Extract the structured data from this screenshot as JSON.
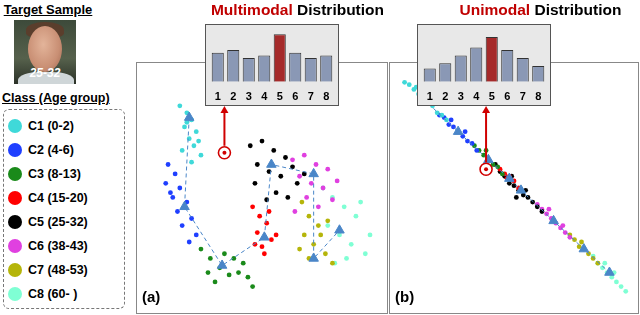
{
  "panel": {
    "title": "Target Sample",
    "sample_label": "25-32",
    "legend_title": "Class (Age group)"
  },
  "chart_data": [
    {
      "type": "scatter",
      "title": "Multimodal Distribution",
      "annotations": [
        "(a)"
      ],
      "xlim": [
        0,
        100
      ],
      "ylim": [
        0,
        100
      ],
      "grid": false,
      "tick_labels": false,
      "series": [
        {
          "name": "C1 (0-2)",
          "color": "#3fd9d9",
          "marker": "circle",
          "center": [
            19,
            80
          ],
          "values": [
            [
              15,
              85
            ],
            [
              18,
              82
            ],
            [
              20,
              79
            ],
            [
              17,
              76
            ],
            [
              22,
              74
            ],
            [
              19,
              71
            ],
            [
              21,
              68
            ],
            [
              16,
              66
            ],
            [
              24,
              64
            ],
            [
              20,
              61
            ],
            [
              18,
              78
            ],
            [
              23,
              70
            ]
          ]
        },
        {
          "name": "C2 (4-6)",
          "color": "#1f3fff",
          "marker": "circle",
          "center": [
            17,
            42
          ],
          "values": [
            [
              10,
              60
            ],
            [
              13,
              56
            ],
            [
              9,
              52
            ],
            [
              15,
              50
            ],
            [
              12,
              46
            ],
            [
              18,
              44
            ],
            [
              14,
              40
            ],
            [
              20,
              37
            ],
            [
              16,
              34
            ],
            [
              22,
              30
            ],
            [
              19,
              27
            ],
            [
              11,
              48
            ]
          ]
        },
        {
          "name": "C3 (8-13)",
          "color": "#1a8a1a",
          "marker": "circle",
          "center": [
            33,
            17
          ],
          "values": [
            [
              24,
              24
            ],
            [
              28,
              20
            ],
            [
              32,
              16
            ],
            [
              36,
              13
            ],
            [
              30,
              10
            ],
            [
              40,
              14
            ],
            [
              44,
              12
            ],
            [
              38,
              20
            ],
            [
              34,
              22
            ],
            [
              46,
              8
            ],
            [
              27,
              14
            ],
            [
              42,
              18
            ]
          ]
        },
        {
          "name": "C4 (15-20)",
          "color": "#ff0000",
          "marker": "circle",
          "center": [
            51,
            29
          ],
          "values": [
            [
              46,
              42
            ],
            [
              49,
              38
            ],
            [
              52,
              35
            ],
            [
              48,
              31
            ],
            [
              54,
              28
            ],
            [
              50,
              25
            ],
            [
              56,
              30
            ],
            [
              47,
              26
            ],
            [
              53,
              40
            ],
            [
              51,
              22
            ]
          ]
        },
        {
          "name": "C5 (25-32)",
          "color": "#000000",
          "marker": "circle",
          "center": [
            54,
            60
          ],
          "values": [
            [
              45,
              68
            ],
            [
              50,
              70
            ],
            [
              55,
              66
            ],
            [
              60,
              63
            ],
            [
              48,
              60
            ],
            [
              53,
              57
            ],
            [
              58,
              55
            ],
            [
              63,
              59
            ],
            [
              47,
              52
            ],
            [
              56,
              48
            ],
            [
              65,
              52
            ],
            [
              52,
              45
            ],
            [
              61,
              46
            ],
            [
              68,
              56
            ]
          ]
        },
        {
          "name": "C6 (38-43)",
          "color": "#e040e0",
          "marker": "circle",
          "center": [
            72,
            56
          ],
          "values": [
            [
              63,
              62
            ],
            [
              68,
              64
            ],
            [
              73,
              60
            ],
            [
              78,
              58
            ],
            [
              66,
              55
            ],
            [
              71,
              52
            ],
            [
              76,
              50
            ],
            [
              82,
              53
            ],
            [
              69,
              46
            ],
            [
              74,
              42
            ],
            [
              80,
              45
            ],
            [
              64,
              40
            ]
          ]
        },
        {
          "name": "C7 (48-53)",
          "color": "#b5b50a",
          "marker": "circle",
          "center": [
            72,
            20
          ],
          "values": [
            [
              67,
              44
            ],
            [
              70,
              38
            ],
            [
              74,
              34
            ],
            [
              68,
              30
            ],
            [
              72,
              26
            ],
            [
              77,
              22
            ],
            [
              70,
              20
            ],
            [
              75,
              30
            ],
            [
              80,
              18
            ],
            [
              66,
              24
            ],
            [
              78,
              36
            ]
          ]
        },
        {
          "name": "C8 (60-  )",
          "color": "#7fffd4",
          "marker": "circle",
          "center": [
            83,
            32
          ],
          "values": [
            [
              76,
              50
            ],
            [
              80,
              46
            ],
            [
              85,
              42
            ],
            [
              90,
              38
            ],
            [
              78,
              34
            ],
            [
              83,
              30
            ],
            [
              88,
              26
            ],
            [
              94,
              22
            ],
            [
              86,
              20
            ],
            [
              96,
              30
            ],
            [
              81,
              18
            ],
            [
              92,
              44
            ]
          ]
        }
      ],
      "centers": {
        "marker": "triangle",
        "line_style": "dashed",
        "color": "#4a86c8"
      },
      "target": {
        "marker": "circle",
        "color": "#d00000",
        "values": [
          [
            34,
            65
          ]
        ]
      }
    },
    {
      "type": "bar",
      "categories": [
        "1",
        "2",
        "3",
        "4",
        "5",
        "6",
        "7",
        "8"
      ],
      "values": [
        0.55,
        0.6,
        0.45,
        0.5,
        0.9,
        0.55,
        0.45,
        0.5
      ],
      "colors": [
        "#8a98b5",
        "#8a98b5",
        "#8a98b5",
        "#8a98b5",
        "#a52a2a",
        "#8a98b5",
        "#8a98b5",
        "#8a98b5"
      ],
      "ylim": [
        0,
        1
      ],
      "grid": false,
      "tick_labels": "x"
    },
    {
      "type": "scatter",
      "title": "Unimodal Distribution",
      "annotations": [
        "(b)"
      ],
      "xlim": [
        0,
        100
      ],
      "ylim": [
        0,
        100
      ],
      "grid": false,
      "tick_labels": false,
      "series": [
        {
          "name": "C1 (0-2)",
          "color": "#3fd9d9",
          "marker": "circle",
          "center": [
            11,
            88
          ],
          "values": [
            [
              3,
              95
            ],
            [
              5,
              94
            ],
            [
              7,
              92
            ],
            [
              9,
              90
            ],
            [
              11,
              88
            ],
            [
              13,
              86
            ],
            [
              15,
              85
            ],
            [
              17,
              82
            ],
            [
              19,
              81
            ],
            [
              21,
              79
            ],
            [
              8,
              93
            ],
            [
              14,
              88
            ]
          ]
        },
        {
          "name": "C2 (4-6)",
          "color": "#1f3fff",
          "marker": "circle",
          "center": [
            26,
            74
          ],
          "values": [
            [
              18,
              81
            ],
            [
              20,
              80
            ],
            [
              22,
              77
            ],
            [
              24,
              76
            ],
            [
              26,
              74
            ],
            [
              28,
              72
            ],
            [
              30,
              70
            ],
            [
              32,
              69
            ],
            [
              34,
              66
            ],
            [
              23,
              79
            ],
            [
              29,
              74
            ]
          ]
        },
        {
          "name": "C3 (8-13)",
          "color": "#1a8a1a",
          "marker": "circle",
          "center": [
            39,
            62
          ],
          "values": [
            [
              33,
              68
            ],
            [
              35,
              66
            ],
            [
              37,
              64
            ],
            [
              39,
              62
            ],
            [
              41,
              60
            ],
            [
              43,
              59
            ],
            [
              45,
              56
            ],
            [
              38,
              66
            ]
          ]
        },
        {
          "name": "C4 (15-20)",
          "color": "#ff0000",
          "marker": "circle",
          "center": [
            48,
            54
          ],
          "values": [
            [
              44,
              58
            ],
            [
              46,
              56
            ],
            [
              48,
              55
            ],
            [
              50,
              53
            ],
            [
              52,
              50
            ],
            [
              47,
              54
            ]
          ]
        },
        {
          "name": "C5 (25-32)",
          "color": "#000000",
          "marker": "circle",
          "center": [
            53,
            49
          ],
          "values": [
            [
              42,
              60
            ],
            [
              44,
              57
            ],
            [
              46,
              55
            ],
            [
              48,
              52
            ],
            [
              50,
              51
            ],
            [
              52,
              49
            ],
            [
              54,
              47
            ],
            [
              56,
              46
            ],
            [
              58,
              44
            ],
            [
              60,
              42
            ],
            [
              62,
              40
            ],
            [
              49,
              55
            ],
            [
              55,
              49
            ],
            [
              51,
              46
            ]
          ]
        },
        {
          "name": "C6 (38-43)",
          "color": "#e040e0",
          "marker": "circle",
          "center": [
            67,
            36
          ],
          "values": [
            [
              60,
              43
            ],
            [
              62,
              41
            ],
            [
              64,
              39
            ],
            [
              66,
              37
            ],
            [
              68,
              35
            ],
            [
              70,
              33
            ],
            [
              72,
              31
            ],
            [
              74,
              29
            ],
            [
              65,
              41
            ],
            [
              71,
              34
            ]
          ]
        },
        {
          "name": "C7 (48-53)",
          "color": "#b5b50a",
          "marker": "circle",
          "center": [
            80,
            24
          ],
          "values": [
            [
              74,
              30
            ],
            [
              76,
              28
            ],
            [
              78,
              25
            ],
            [
              80,
              24
            ],
            [
              82,
              22
            ],
            [
              84,
              20
            ],
            [
              86,
              18
            ],
            [
              79,
              27
            ]
          ]
        },
        {
          "name": "C8 (60-  )",
          "color": "#7fffd4",
          "marker": "circle",
          "center": [
            91,
            14
          ],
          "values": [
            [
              84,
              21
            ],
            [
              86,
              18
            ],
            [
              88,
              16
            ],
            [
              90,
              14
            ],
            [
              92,
              12
            ],
            [
              94,
              10
            ],
            [
              96,
              8
            ],
            [
              98,
              6
            ],
            [
              89,
              18
            ],
            [
              93,
              14
            ]
          ]
        }
      ],
      "centers": {
        "marker": "triangle",
        "line_style": "dashed",
        "color": "#4a86c8"
      },
      "target": {
        "marker": "circle",
        "color": "#d00000",
        "values": [
          [
            38,
            58
          ]
        ]
      }
    },
    {
      "type": "bar",
      "categories": [
        "1",
        "2",
        "3",
        "4",
        "5",
        "6",
        "7",
        "8"
      ],
      "values": [
        0.25,
        0.35,
        0.5,
        0.65,
        0.85,
        0.6,
        0.45,
        0.3
      ],
      "colors": [
        "#8a98b5",
        "#8a98b5",
        "#8a98b5",
        "#8a98b5",
        "#a52a2a",
        "#8a98b5",
        "#8a98b5",
        "#8a98b5"
      ],
      "ylim": [
        0,
        1
      ],
      "grid": false,
      "tick_labels": "x"
    }
  ]
}
